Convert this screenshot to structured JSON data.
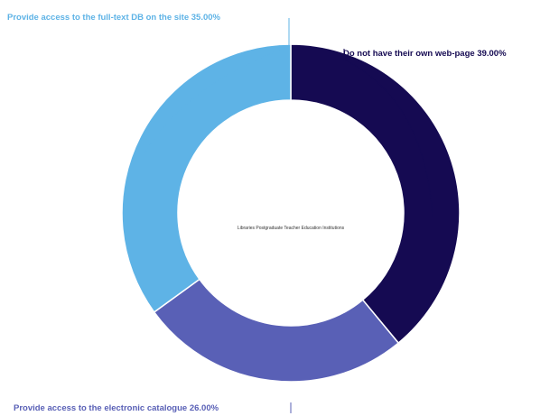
{
  "chart_data": {
    "type": "pie",
    "center_label": "Libraries Postgraduate Teacher Education Institutions",
    "slices": [
      {
        "label": "Do not have their own web-page",
        "value": 39.0,
        "value_text": "39.00%",
        "color": "#150a52",
        "label_color": "#150a52"
      },
      {
        "label": "Provide access to the electronic catalogue",
        "value": 26.0,
        "value_text": "26.00%",
        "color": "#5960b6",
        "label_color": "#5960b6"
      },
      {
        "label": "Provide access to the full-text DB on the site",
        "value": 35.0,
        "value_text": "35.00%",
        "color": "#5eb3e6",
        "label_color": "#5eb3e6"
      }
    ],
    "legend": false
  }
}
